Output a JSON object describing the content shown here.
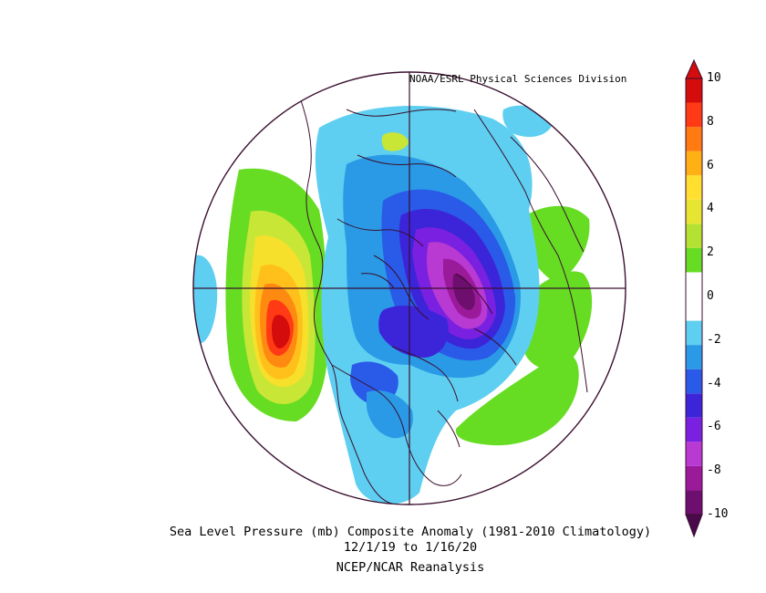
{
  "credit": "NOAA/ESRL Physical Sciences Division",
  "title": "Sea Level Pressure (mb) Composite Anomaly (1981-2010 Climatology)",
  "dates": "12/1/19  to 1/16/20",
  "source": "NCEP/NCAR Reanalysis",
  "colorbar": {
    "ticks": [
      "10",
      "8",
      "6",
      "4",
      "2",
      "0",
      "-2",
      "-4",
      "-6",
      "-8",
      "-10"
    ],
    "colors": [
      "#6e0e6e",
      "#9a1a9a",
      "#b83ad2",
      "#7a20e0",
      "#3c24d8",
      "#2a5ae8",
      "#2a9ae6",
      "#5ecff0",
      "#ffffff",
      "#ffffff",
      "#66dd22",
      "#b4e232",
      "#e6e632",
      "#ffe030",
      "#ffb014",
      "#ff7a10",
      "#ff3a14",
      "#d40c0c"
    ],
    "min_color": "#4a0a4a",
    "max_color": "#d40c0c"
  },
  "map": {
    "background": "#ffffff",
    "outline_color": "#3a0f2e"
  }
}
